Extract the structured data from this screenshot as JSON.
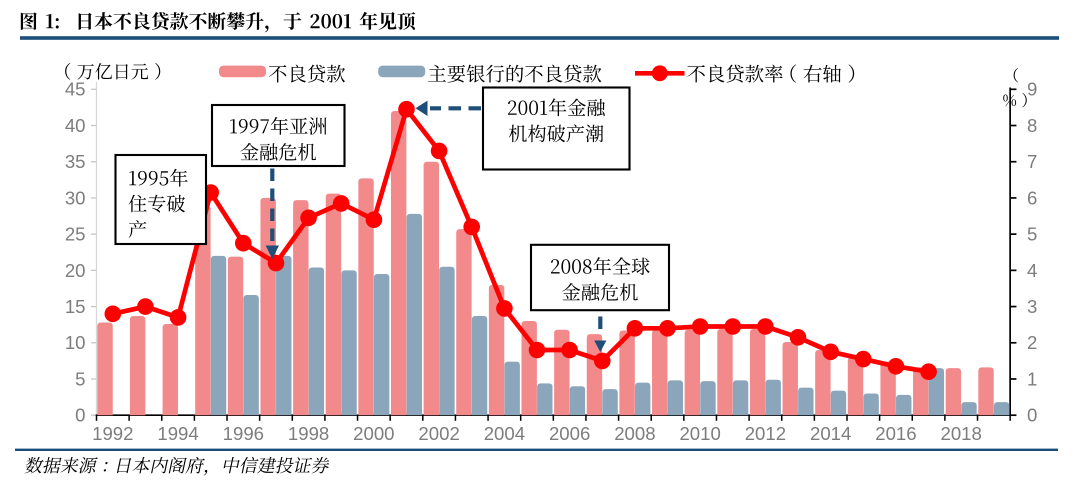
{
  "figure": {
    "title": "图 1:  日本不良贷款不断攀升，于 2001 年见顶",
    "source_note": "数据来源：日本内阁府，中信建投证券"
  },
  "legend": {
    "items": [
      {
        "label": "不良贷款",
        "swatch": "bar",
        "color": "#F2898B"
      },
      {
        "label": "主要银行的不良贷款",
        "swatch": "bar",
        "color": "#8BA6BB"
      },
      {
        "label": "不良贷款率（右轴）",
        "swatch": "line-marker",
        "color": "#FE0000"
      }
    ]
  },
  "chart_data": {
    "type": "bar+line",
    "title": "图 1:  日本不良贷款不断攀升，于 2001 年见顶",
    "categories": [
      "1992",
      "1993",
      "1994",
      "1995",
      "1996",
      "1997",
      "1998",
      "1999",
      "2000",
      "2001",
      "2002",
      "2003",
      "2004",
      "2005",
      "2006",
      "2007",
      "2008",
      "2009",
      "2010",
      "2011",
      "2012",
      "2013",
      "2014",
      "2015",
      "2016",
      "2017",
      "2018",
      "2019"
    ],
    "series": [
      {
        "name": "不良贷款",
        "type": "bar",
        "axis": "left",
        "color": "#F2898B",
        "values": [
          12.8,
          13.7,
          12.6,
          28.9,
          21.9,
          30.0,
          29.7,
          30.6,
          32.7,
          42.0,
          35.0,
          25.7,
          18.0,
          13.0,
          11.8,
          11.2,
          11.7,
          11.8,
          11.8,
          11.9,
          11.9,
          10.1,
          9.0,
          8.0,
          7.4,
          6.6,
          6.5,
          6.6
        ]
      },
      {
        "name": "主要银行的不良贷款",
        "type": "bar",
        "axis": "left",
        "color": "#8BA6BB",
        "values": [
          null,
          null,
          null,
          22.0,
          16.6,
          22.0,
          20.4,
          20.0,
          19.5,
          27.8,
          20.5,
          13.7,
          7.4,
          4.4,
          4.0,
          3.6,
          4.5,
          4.8,
          4.7,
          4.8,
          4.9,
          3.8,
          3.4,
          3.0,
          2.8,
          6.5,
          1.8,
          1.8
        ]
      },
      {
        "name": "不良贷款率（右轴）",
        "type": "line",
        "axis": "right",
        "color": "#FE0000",
        "values": [
          2.8,
          3.0,
          2.7,
          6.15,
          4.75,
          4.2,
          5.45,
          5.85,
          5.4,
          8.45,
          7.3,
          5.2,
          2.95,
          1.8,
          1.8,
          1.5,
          2.4,
          2.4,
          2.45,
          2.45,
          2.45,
          2.15,
          1.75,
          1.55,
          1.35,
          1.2,
          null,
          null
        ]
      }
    ],
    "left_axis": {
      "title": "（万亿日元）",
      "min": 0,
      "max": 45,
      "ticks": [
        0,
        5,
        10,
        15,
        20,
        25,
        30,
        35,
        40,
        45
      ]
    },
    "right_axis": {
      "title": "（%）",
      "min": 0,
      "max": 9,
      "ticks": [
        0,
        1,
        2,
        3,
        4,
        5,
        6,
        7,
        8,
        9
      ]
    },
    "x_tick_labels": [
      "1992",
      "1994",
      "1996",
      "1998",
      "2000",
      "2002",
      "2004",
      "2006",
      "2008",
      "2010",
      "2012",
      "2014",
      "2016",
      "2018"
    ],
    "grid": false,
    "legend_position": "top"
  },
  "annotations": [
    {
      "text": "1995年住专破产",
      "lines": [
        "1995年",
        "住专破",
        "产"
      ],
      "align": "left"
    },
    {
      "text": "1997年亚洲金融危机",
      "lines": [
        "1997年亚洲",
        "金融危机"
      ],
      "align": "center",
      "arrow": "down"
    },
    {
      "text": "2001年金融机构破产潮",
      "lines": [
        "2001年金融",
        "机构破产潮"
      ],
      "align": "center",
      "arrow": "left"
    },
    {
      "text": "2008年全球金融危机",
      "lines": [
        "2008年全球",
        "金融危机"
      ],
      "align": "center",
      "arrow": "down"
    }
  ],
  "colors": {
    "bar_npl": "#F2898B",
    "bar_major": "#8BA6BB",
    "line_rate": "#FE0000",
    "rule": "#1B4F7A",
    "arrow": "#1F4E79",
    "axis_label": "#7D7D7D",
    "text": "#000000"
  }
}
